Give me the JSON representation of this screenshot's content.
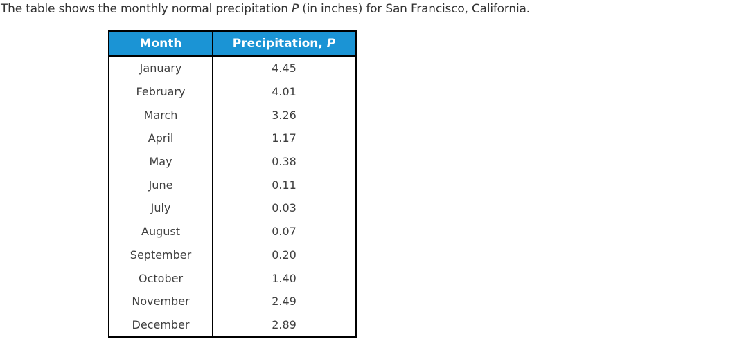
{
  "title": {
    "prefix": "The table shows the monthly normal precipitation ",
    "variable": "P",
    "suffix": " (in inches) for San Francisco, California."
  },
  "table": {
    "headers": {
      "month": "Month",
      "precip_label": "Precipitation, ",
      "precip_var": "P"
    },
    "rows": [
      {
        "month": "January",
        "value": "4.45"
      },
      {
        "month": "February",
        "value": "4.01"
      },
      {
        "month": "March",
        "value": "3.26"
      },
      {
        "month": "April",
        "value": "1.17"
      },
      {
        "month": "May",
        "value": "0.38"
      },
      {
        "month": "June",
        "value": "0.11"
      },
      {
        "month": "July",
        "value": "0.03"
      },
      {
        "month": "August",
        "value": "0.07"
      },
      {
        "month": "September",
        "value": "0.20"
      },
      {
        "month": "October",
        "value": "1.40"
      },
      {
        "month": "November",
        "value": "2.49"
      },
      {
        "month": "December",
        "value": "2.89"
      }
    ]
  },
  "colors": {
    "header_bg": "#1b94d5",
    "header_text": "#ffffff",
    "body_text": "#3f3f3f",
    "border": "#000000"
  },
  "chart_data": {
    "type": "table",
    "title": "Monthly normal precipitation P (in inches) for San Francisco, California",
    "columns": [
      "Month",
      "Precipitation, P"
    ],
    "categories": [
      "January",
      "February",
      "March",
      "April",
      "May",
      "June",
      "July",
      "August",
      "September",
      "October",
      "November",
      "December"
    ],
    "values": [
      4.45,
      4.01,
      3.26,
      1.17,
      0.38,
      0.11,
      0.03,
      0.07,
      0.2,
      1.4,
      2.49,
      2.89
    ]
  }
}
